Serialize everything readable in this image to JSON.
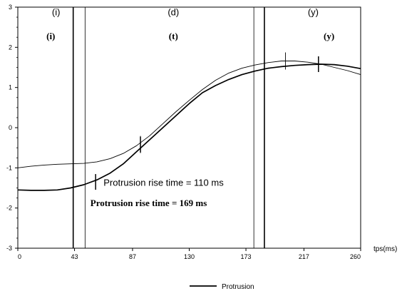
{
  "chart_data": {
    "type": "line",
    "x_unit_label": "tps(ms)",
    "xlim": [
      0,
      260
    ],
    "ylim": [
      -3,
      3
    ],
    "x_ticks": [
      "0",
      "43",
      "87",
      "130",
      "173",
      "217",
      "260"
    ],
    "x_tick_values": [
      0,
      43,
      87,
      130,
      173,
      217,
      260
    ],
    "y_ticks": [
      "-3",
      "-2",
      "-1",
      "0",
      "1",
      "2",
      "3"
    ],
    "y_tick_values": [
      -3,
      -2,
      -1,
      0,
      1,
      2,
      3
    ],
    "phase_labels": [
      {
        "text": "(i)",
        "x": 29,
        "y": 2.8,
        "style": "plain"
      },
      {
        "text": "(d)",
        "x": 118,
        "y": 2.8,
        "style": "plain"
      },
      {
        "text": "(y)",
        "x": 224,
        "y": 2.8,
        "style": "plain"
      },
      {
        "text": "(i)",
        "x": 25,
        "y": 2.2,
        "style": "bold"
      },
      {
        "text": "(t)",
        "x": 118,
        "y": 2.2,
        "style": "bold"
      },
      {
        "text": "(y)",
        "x": 236,
        "y": 2.2,
        "style": "bold"
      }
    ],
    "boundaries": [
      {
        "x": 42,
        "weight": "thick"
      },
      {
        "x": 51,
        "weight": "thin"
      },
      {
        "x": 179,
        "weight": "thin"
      },
      {
        "x": 187,
        "weight": "thick"
      }
    ],
    "annotations": [
      {
        "text": "Protrusion rise time = 110 ms",
        "x": 65,
        "y": -1.45,
        "style": "plain"
      },
      {
        "text": "Protrusion rise time = 169 ms",
        "x": 55,
        "y": -1.95,
        "style": "bold"
      }
    ],
    "series": [
      {
        "name": "Protrusion",
        "weight": "thick",
        "x": [
          0,
          10,
          20,
          30,
          40,
          50,
          60,
          70,
          80,
          90,
          100,
          110,
          120,
          130,
          140,
          150,
          160,
          170,
          180,
          190,
          200,
          210,
          220,
          230,
          240,
          250,
          260
        ],
        "values": [
          -1.55,
          -1.56,
          -1.56,
          -1.55,
          -1.5,
          -1.42,
          -1.3,
          -1.13,
          -0.9,
          -0.6,
          -0.3,
          0.0,
          0.3,
          0.6,
          0.87,
          1.05,
          1.2,
          1.32,
          1.41,
          1.48,
          1.52,
          1.55,
          1.57,
          1.58,
          1.57,
          1.53,
          1.47
        ],
        "markers": [
          {
            "x": 59,
            "y": -1.35
          },
          {
            "x": 93,
            "y": -0.42
          },
          {
            "x": 228,
            "y": 1.58
          }
        ]
      },
      {
        "weight": "thin",
        "x": [
          0,
          10,
          20,
          30,
          40,
          50,
          60,
          70,
          80,
          90,
          100,
          110,
          120,
          130,
          140,
          150,
          160,
          170,
          180,
          190,
          200,
          210,
          220,
          230,
          240,
          250,
          260
        ],
        "values": [
          -1.0,
          -0.96,
          -0.93,
          -0.91,
          -0.9,
          -0.89,
          -0.85,
          -0.77,
          -0.64,
          -0.45,
          -0.2,
          0.1,
          0.4,
          0.68,
          0.95,
          1.18,
          1.36,
          1.48,
          1.56,
          1.62,
          1.66,
          1.66,
          1.63,
          1.58,
          1.5,
          1.42,
          1.32
        ],
        "markers": [
          {
            "x": 93,
            "y": -0.42
          },
          {
            "x": 203,
            "y": 1.66
          }
        ]
      }
    ]
  },
  "legend": {
    "items": [
      {
        "label": "Protrusion"
      }
    ]
  }
}
